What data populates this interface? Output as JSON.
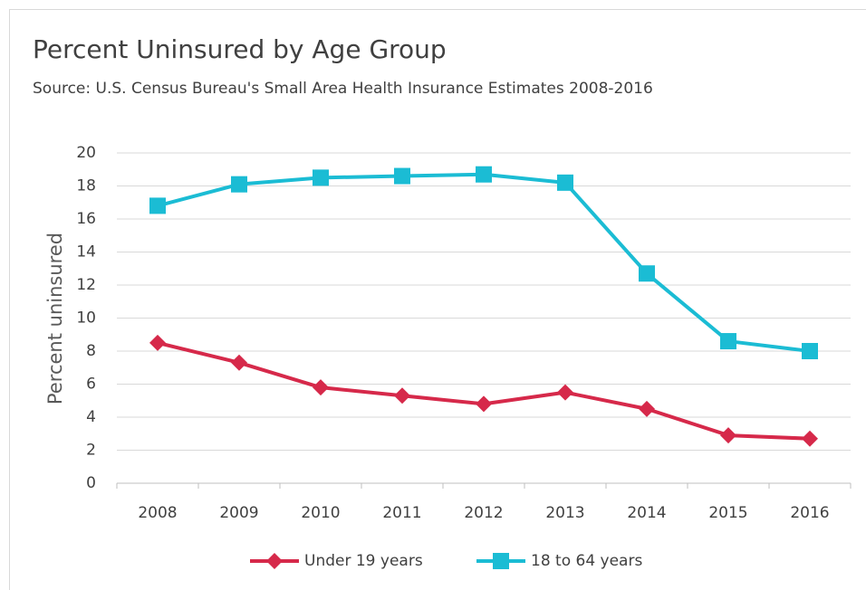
{
  "chart_data": {
    "type": "line",
    "title": "Percent Uninsured by Age Group",
    "subtitle": "Source: U.S. Census Bureau's Small Area Health Insurance Estimates 2008-2016",
    "y_label": "Percent uninsured",
    "categories": [
      "2008",
      "2009",
      "2010",
      "2011",
      "2012",
      "2013",
      "2014",
      "2015",
      "2016"
    ],
    "series": [
      {
        "name": "Under 19 years",
        "color": "#d6294a",
        "marker": "diamond",
        "values": [
          8.5,
          7.3,
          5.8,
          5.3,
          4.8,
          5.5,
          4.5,
          2.9,
          2.7
        ]
      },
      {
        "name": "18 to 64 years",
        "color": "#1bbcd4",
        "marker": "square",
        "values": [
          16.8,
          18.1,
          18.5,
          18.6,
          18.7,
          18.2,
          12.7,
          8.6,
          8.0
        ]
      }
    ],
    "ylim": [
      0,
      20
    ],
    "yticks": [
      0,
      2,
      4,
      6,
      8,
      10,
      12,
      14,
      16,
      18,
      20
    ],
    "grid": true,
    "legend": "bottom"
  }
}
